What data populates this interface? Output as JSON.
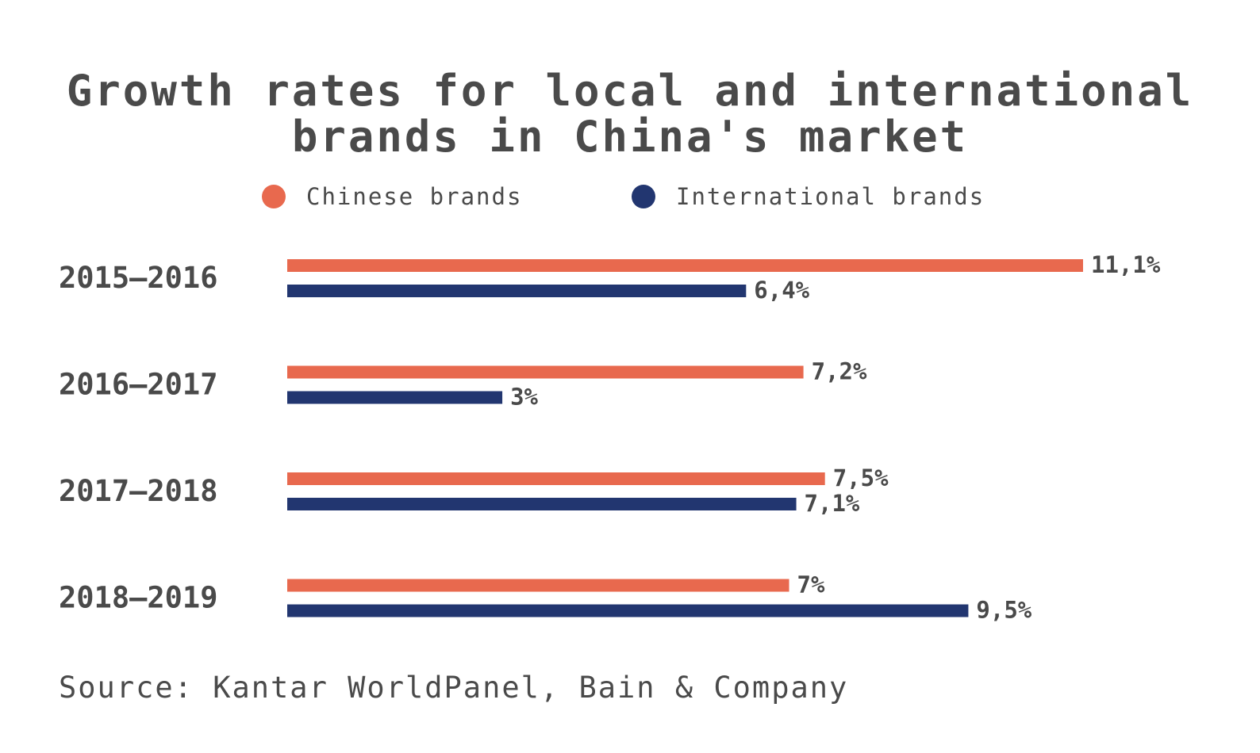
{
  "title_lines": [
    "Growth rates for local and international",
    "brands in China's market"
  ],
  "source": "Source: Kantar WorldPanel, Bain & Company",
  "colors": {
    "chinese": "#e8694e",
    "international": "#223670",
    "text": "#4a4a4a"
  },
  "chart_data": {
    "type": "bar",
    "orientation": "horizontal",
    "title": "Growth rates for local and international brands in China's market",
    "categories": [
      "2015—2016",
      "2016—2017",
      "2017—2018",
      "2018—2019"
    ],
    "series": [
      {
        "name": "Chinese brands",
        "values": [
          11.1,
          7.2,
          7.5,
          7
        ],
        "labels": [
          "11,1%",
          "7,2%",
          "7,5%",
          "7%"
        ]
      },
      {
        "name": "International brands",
        "values": [
          6.4,
          3,
          7.1,
          9.5
        ],
        "labels": [
          "6,4%",
          "3%",
          "7,1%",
          "9,5%"
        ]
      }
    ],
    "xlim": [
      0,
      11.1
    ],
    "grid": false,
    "legend": "top-center"
  }
}
